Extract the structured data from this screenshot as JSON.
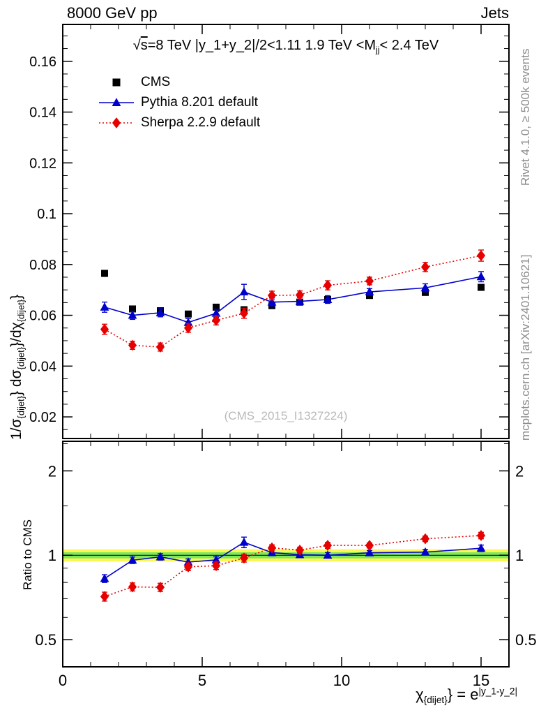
{
  "header": {
    "left": "8000 GeV pp",
    "right": "Jets"
  },
  "title_parts": [
    {
      "t": "√"
    },
    {
      "t": "s",
      "overline": true
    },
    {
      "t": "=8 TeV |y_1+y_2|/2<1.11 1.9 TeV <M"
    },
    {
      "t": "jj",
      "sub": true
    },
    {
      "t": "< 2.4 TeV"
    }
  ],
  "ylabel_main_parts": [
    {
      "t": "1/σ"
    },
    {
      "t": "{dijet}",
      "sub": true
    },
    {
      "t": "} dσ"
    },
    {
      "t": "{dijet}",
      "sub": true
    },
    {
      "t": "}/dχ"
    },
    {
      "t": "{dijet}",
      "sub": true
    },
    {
      "t": "}"
    }
  ],
  "xlabel_parts": [
    {
      "t": "χ"
    },
    {
      "t": "{dijet}",
      "sub": true
    },
    {
      "t": "} = e"
    },
    {
      "t": "|y_1-y_2|",
      "sup": true
    }
  ],
  "ratio_ylabel": "Ratio to CMS",
  "watermark": "(CMS_2015_I1327224)",
  "side_captions": {
    "top": "Rivet 4.1.0, ≥ 500k events",
    "bottom": "mcplots.cern.ch [arXiv:2401.10621]"
  },
  "chart_data": {
    "type": "line",
    "title": "√s=8 TeV |y_1+y_2|/2<1.11 1.9 TeV <M_jj< 2.4 TeV",
    "xlabel": "χ_{dijet} = e^|y_1-y_2|",
    "ylabel": "1/σ_{dijet} dσ_{dijet}/dχ_{dijet}",
    "ratio_ylabel": "Ratio to CMS",
    "legend_position": "top-left",
    "grid": false,
    "x": [
      1.5,
      2.5,
      3.5,
      4.5,
      5.5,
      6.5,
      7.5,
      8.5,
      9.5,
      11,
      13,
      15
    ],
    "series": [
      {
        "name": "CMS",
        "marker": "square",
        "color": "#000000",
        "line": "none",
        "values": [
          0.0765,
          0.0625,
          0.0618,
          0.0605,
          0.0632,
          0.0622,
          0.0638,
          0.0652,
          0.0662,
          0.0678,
          0.069,
          0.071
        ],
        "errors": [
          0.0012,
          0.0008,
          0.0008,
          0.0008,
          0.0008,
          0.0008,
          0.0008,
          0.0008,
          0.0008,
          0.0008,
          0.0008,
          0.001
        ]
      },
      {
        "name": "Pythia 8.201 default",
        "marker": "triangle",
        "color": "#0000cc",
        "line": "solid",
        "values": [
          0.0632,
          0.06,
          0.061,
          0.0572,
          0.0608,
          0.0692,
          0.0652,
          0.0655,
          0.0662,
          0.0692,
          0.0708,
          0.0752
        ],
        "errors": [
          0.002,
          0.0016,
          0.0016,
          0.0015,
          0.0016,
          0.003,
          0.0016,
          0.0015,
          0.0015,
          0.0013,
          0.0016,
          0.002
        ]
      },
      {
        "name": "Sherpa 2.2.9 default",
        "marker": "diamond",
        "color": "#e60000",
        "line": "dotted",
        "values": [
          0.0545,
          0.0482,
          0.0475,
          0.055,
          0.058,
          0.0608,
          0.0678,
          0.068,
          0.0718,
          0.0735,
          0.079,
          0.0835
        ],
        "errors": [
          0.002,
          0.0016,
          0.0016,
          0.0017,
          0.0018,
          0.002,
          0.0017,
          0.0016,
          0.0018,
          0.0015,
          0.0018,
          0.0022
        ]
      }
    ],
    "ratio_reference": "CMS",
    "xlim": [
      0,
      16
    ],
    "ylim_main": [
      0.0115,
      0.1745
    ],
    "ylim_ratio": [
      0.4,
      2.55
    ],
    "ratio_log_scale": true,
    "x_major_ticks": [
      0,
      5,
      10,
      15
    ],
    "x_minor_step": 1,
    "y_major_step": 0.02,
    "y_minor_step": 0.005,
    "ratio_major_ticks": [
      0.5,
      1,
      2
    ],
    "ratio_minor_ticks": [
      0.4,
      0.6,
      0.7,
      0.8,
      0.9,
      1.5,
      2.5
    ],
    "band": {
      "center": 1.0,
      "green_lo": 0.975,
      "green_hi": 1.025,
      "yellow_lo": 0.95,
      "yellow_hi": 1.05,
      "green_color": "#7de95a",
      "yellow_color": "#fdf655"
    }
  }
}
